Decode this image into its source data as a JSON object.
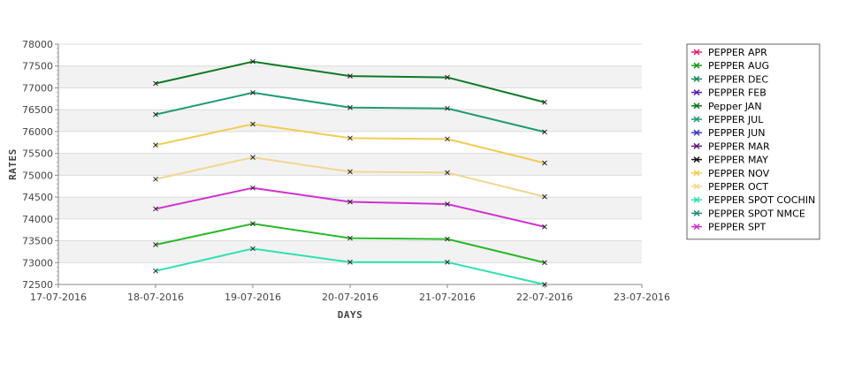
{
  "chart_data": {
    "type": "line",
    "xlabel": "DAYS",
    "ylabel": "RATES",
    "x_ticks": [
      "17-07-2016",
      "18-07-2016",
      "19-07-2016",
      "20-07-2016",
      "21-07-2016",
      "22-07-2016",
      "23-07-2016"
    ],
    "x": [
      "18-07-2016",
      "19-07-2016",
      "20-07-2016",
      "21-07-2016",
      "22-07-2016"
    ],
    "y_ticks": [
      72500,
      73000,
      73500,
      74000,
      74500,
      75000,
      75500,
      76000,
      76500,
      77000,
      77500,
      78000
    ],
    "ylim": [
      72500,
      78000
    ],
    "legend_position": "right",
    "grid": "alternating horizontal bands",
    "series": [
      {
        "name": "PEPPER APR",
        "color": "#e0206a",
        "values": [
          null,
          null,
          null,
          null,
          null
        ]
      },
      {
        "name": "PEPPER AUG",
        "color": "#1a9a1a",
        "values": [
          null,
          null,
          null,
          null,
          null
        ]
      },
      {
        "name": "PEPPER DEC",
        "color": "#148a5c",
        "values": [
          null,
          null,
          null,
          null,
          null
        ]
      },
      {
        "name": "PEPPER FEB",
        "color": "#5a1ab0",
        "values": [
          null,
          null,
          null,
          null,
          null
        ]
      },
      {
        "name": "Pepper JAN",
        "color": "#0c7a24",
        "values": [
          77100,
          77600,
          77270,
          77240,
          76670
        ]
      },
      {
        "name": "PEPPER JUL",
        "color": "#1e9a72",
        "values": [
          76390,
          76890,
          76550,
          76530,
          75990
        ]
      },
      {
        "name": "PEPPER JUN",
        "color": "#3a3ac8",
        "values": [
          null,
          null,
          null,
          null,
          null
        ]
      },
      {
        "name": "PEPPER MAR",
        "color": "#5a1a7a",
        "values": [
          null,
          null,
          null,
          null,
          null
        ]
      },
      {
        "name": "PEPPER MAY",
        "color": "#111111",
        "values": [
          null,
          null,
          null,
          null,
          null
        ]
      },
      {
        "name": "PEPPER NOV",
        "color": "#f2cc55",
        "values": [
          75690,
          76170,
          75850,
          75830,
          75280
        ]
      },
      {
        "name": "PEPPER OCT",
        "color": "#f2d590",
        "values": [
          74910,
          75410,
          75080,
          75060,
          74510
        ]
      },
      {
        "name": "PEPPER SPOT COCHIN",
        "color": "#2ee0b0",
        "values": [
          72810,
          73320,
          73010,
          73010,
          72500
        ]
      },
      {
        "name": "PEPPER SPOT NMCE",
        "color": "#1e8a7a",
        "values": [
          null,
          null,
          null,
          null,
          null
        ]
      },
      {
        "name": "PEPPER SPT",
        "color": "#d030d0",
        "values": [
          74230,
          74710,
          74390,
          74340,
          73820
        ]
      },
      {
        "name": "PEPPER AUG (line)",
        "color": "#2ab82a",
        "values": [
          73410,
          73890,
          73560,
          73540,
          73000
        ]
      }
    ]
  }
}
